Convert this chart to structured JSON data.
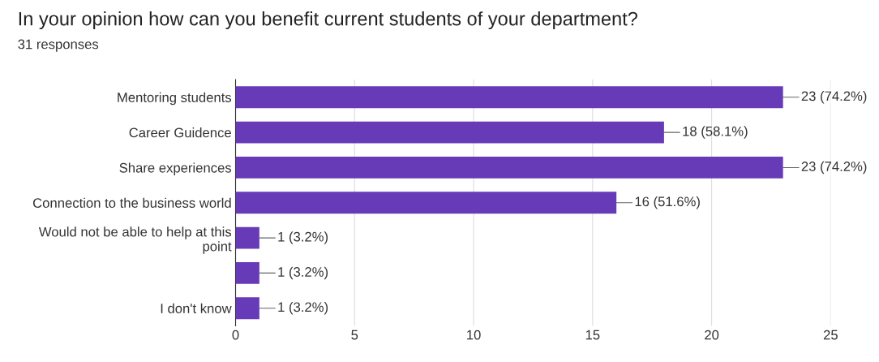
{
  "chart_data": {
    "type": "bar",
    "orientation": "horizontal",
    "title": "In your opinion how can you benefit current students of your department?",
    "subtitle": "31 responses",
    "categories": [
      "Mentoring students",
      "Career Guidence",
      "Share experiences",
      "Connection to the business world",
      "Would not be able to help at this\npoint",
      null,
      "I don't know"
    ],
    "values": [
      23,
      18,
      23,
      16,
      1,
      1,
      1
    ],
    "value_labels": [
      "23 (74.2%)",
      "18 (58.1%)",
      "23 (74.2%)",
      "16 (51.6%)",
      "1 (3.2%)",
      "1 (3.2%)",
      "1 (3.2%)"
    ],
    "color": "#673ab7",
    "xlim": [
      0,
      25
    ],
    "xticks": [
      0,
      5,
      10,
      15,
      20,
      25
    ],
    "grid": "x"
  }
}
